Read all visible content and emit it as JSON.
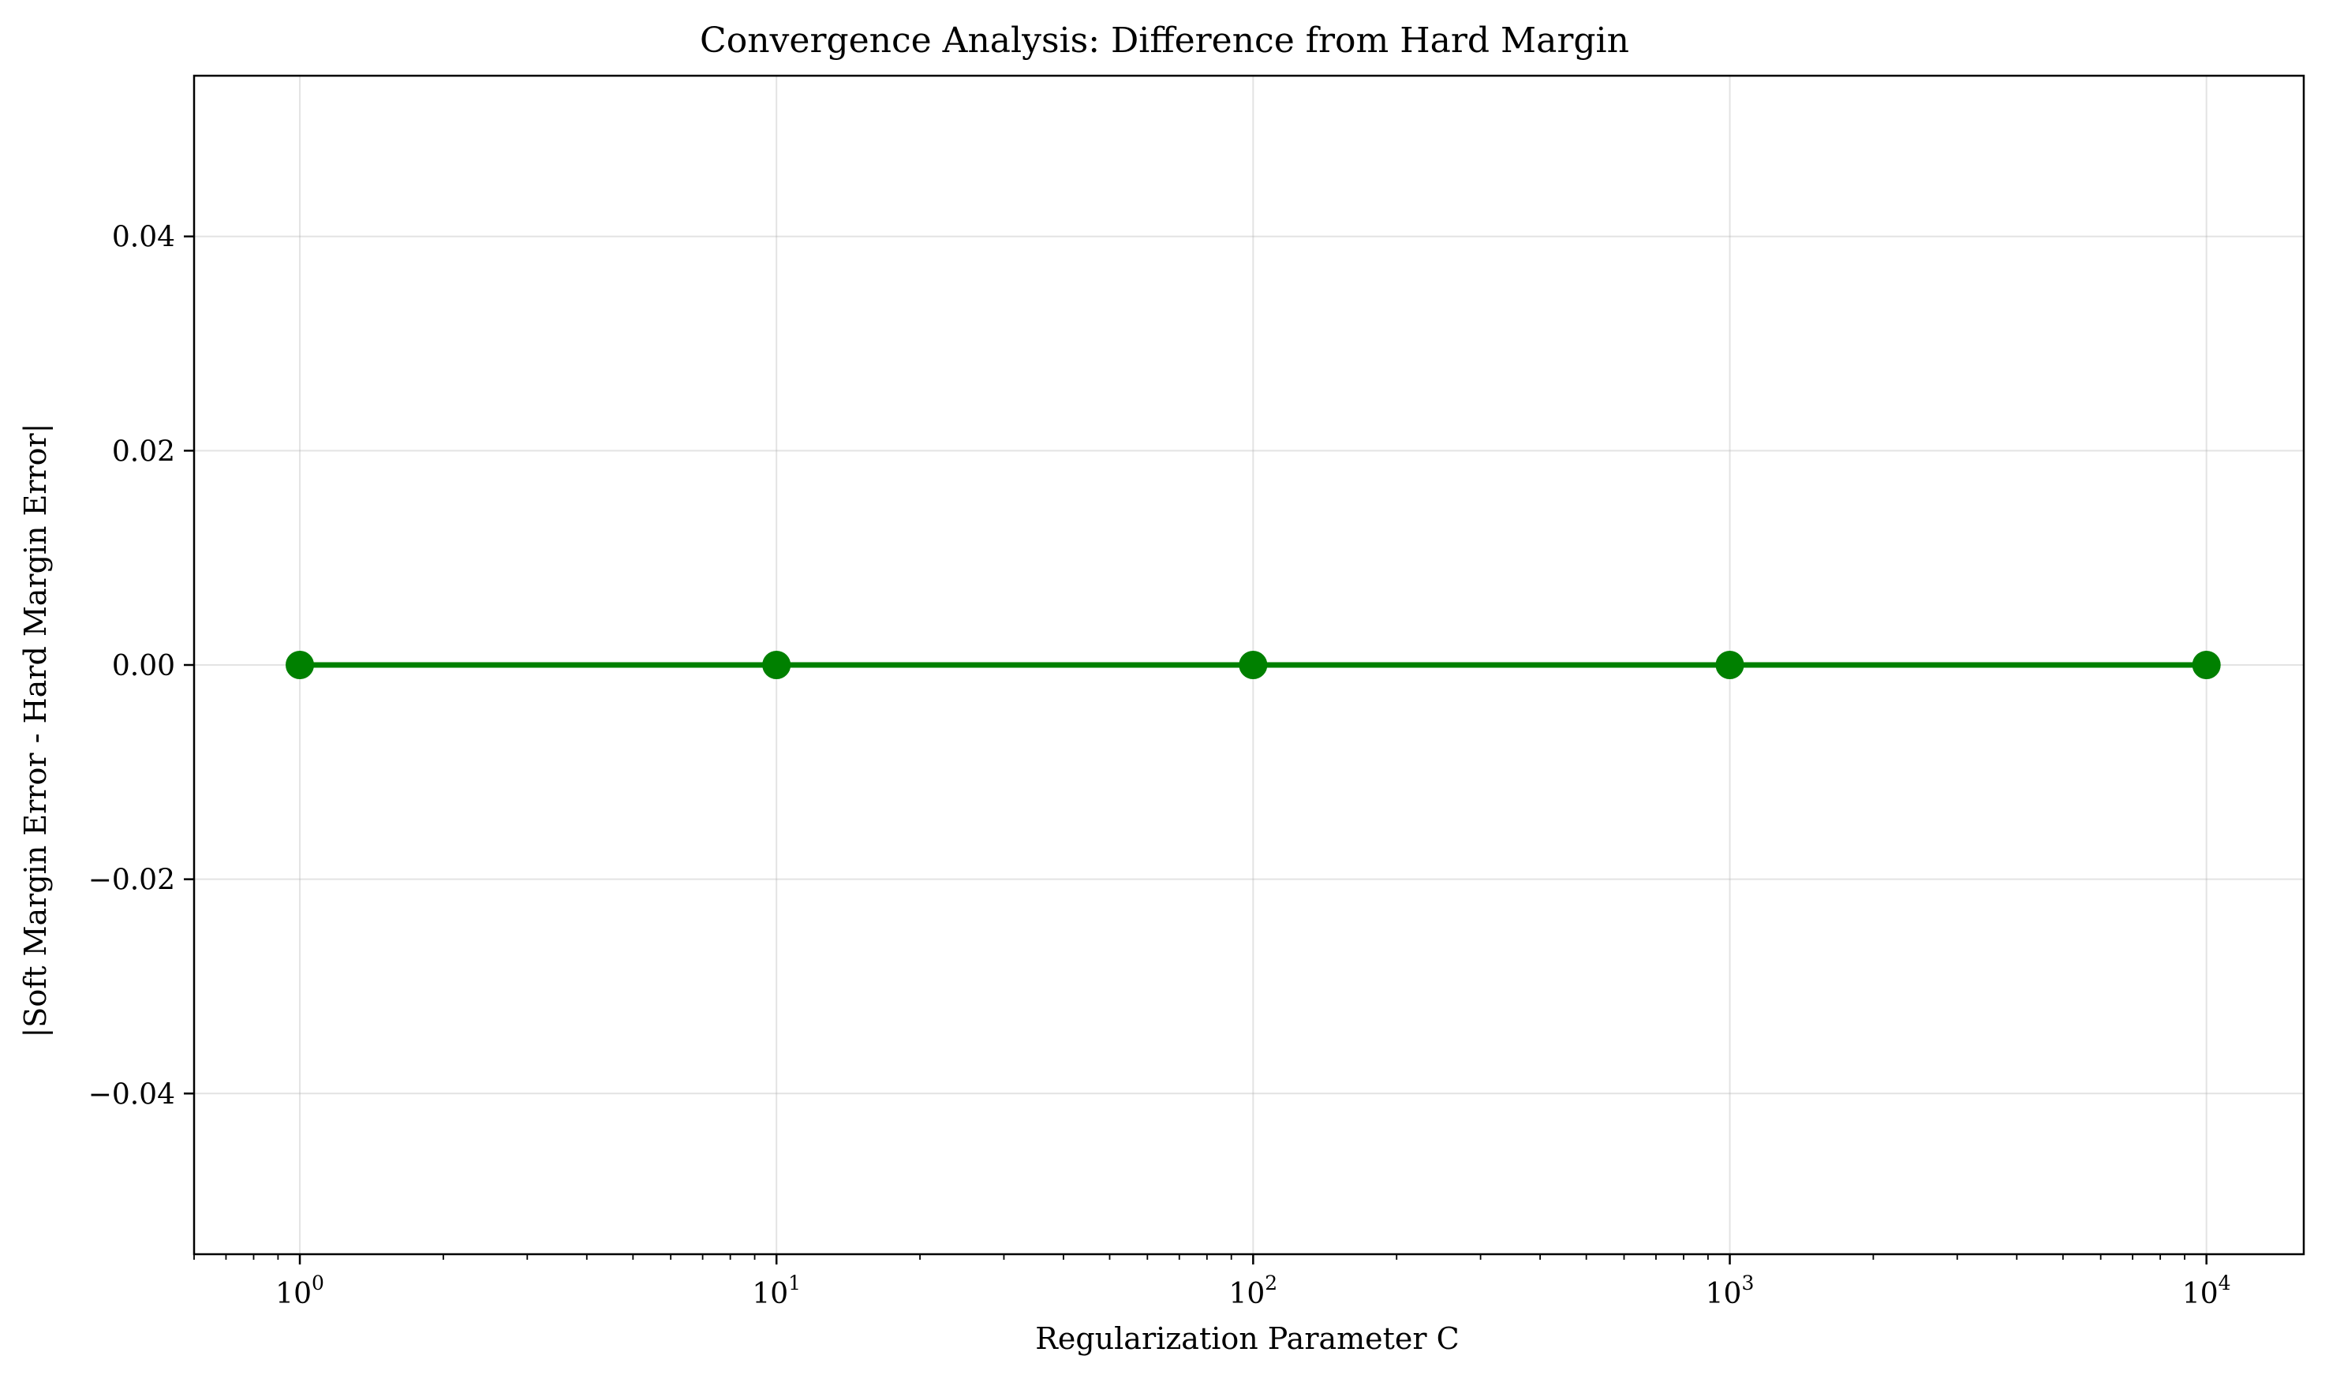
{
  "chart_data": {
    "type": "line",
    "title": "Convergence Analysis: Difference from Hard Margin",
    "xlabel": "Regularization Parameter C",
    "ylabel": "|Soft Margin Error - Hard Margin Error|",
    "xscale": "log",
    "xlim": [
      0.6,
      16000
    ],
    "ylim": [
      -0.055,
      0.055
    ],
    "grid": true,
    "x_ticks": [
      {
        "base": "10",
        "exp": "0",
        "value": 1
      },
      {
        "base": "10",
        "exp": "1",
        "value": 10
      },
      {
        "base": "10",
        "exp": "2",
        "value": 100
      },
      {
        "base": "10",
        "exp": "3",
        "value": 1000
      },
      {
        "base": "10",
        "exp": "4",
        "value": 10000
      }
    ],
    "y_ticks": [
      {
        "label": "−0.04",
        "value": -0.04
      },
      {
        "label": "−0.02",
        "value": -0.02
      },
      {
        "label": "0.00",
        "value": 0.0
      },
      {
        "label": "0.02",
        "value": 0.02
      },
      {
        "label": "0.04",
        "value": 0.04
      }
    ],
    "series": [
      {
        "name": "",
        "color": "#008000",
        "marker": "circle",
        "x": [
          1,
          10,
          100,
          1000,
          10000
        ],
        "y": [
          0,
          0,
          0,
          0,
          0
        ]
      }
    ]
  }
}
